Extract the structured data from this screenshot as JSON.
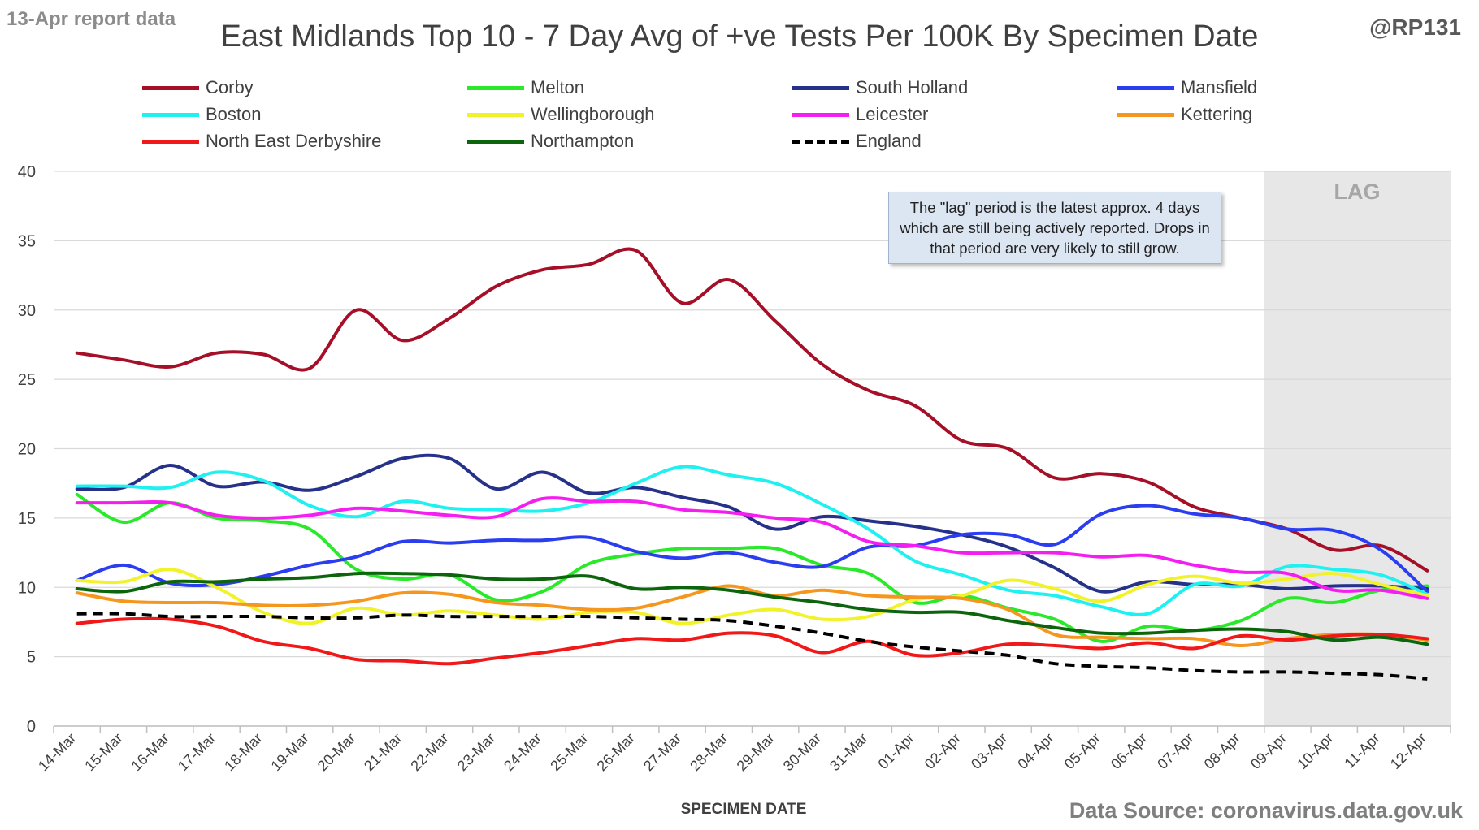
{
  "header": {
    "report_label": "13-Apr report data",
    "title": "East Midlands Top 10 - 7 Day Avg of +ve Tests Per 100K By Specimen Date",
    "handle": "@RP131"
  },
  "annotation": {
    "lag_label": "LAG",
    "note": "The \"lag\" period is the latest approx. 4 days which are still being actively reported. Drops in that period are very likely to still grow."
  },
  "footer": {
    "source": "Data Source: coronavirus.data.gov.uk"
  },
  "colors": {
    "grid": "#d9d9d9",
    "lag_shade": "#e7e7e7",
    "text": "#404040"
  },
  "chart_data": {
    "type": "line",
    "title": "East Midlands Top 10 - 7 Day Avg of +ve Tests Per 100K By Specimen Date",
    "xlabel": "SPECIMEN DATE",
    "ylabel": "",
    "ylim": [
      0,
      40
    ],
    "yticks": [
      0,
      5,
      10,
      15,
      20,
      25,
      30,
      35,
      40
    ],
    "grid": "horizontal",
    "legend_position": "top",
    "lag_start": "09-Apr",
    "categories": [
      "14-Mar",
      "15-Mar",
      "16-Mar",
      "17-Mar",
      "18-Mar",
      "19-Mar",
      "20-Mar",
      "21-Mar",
      "22-Mar",
      "23-Mar",
      "24-Mar",
      "25-Mar",
      "26-Mar",
      "27-Mar",
      "28-Mar",
      "29-Mar",
      "30-Mar",
      "31-Mar",
      "01-Apr",
      "02-Apr",
      "03-Apr",
      "04-Apr",
      "05-Apr",
      "06-Apr",
      "07-Apr",
      "08-Apr",
      "09-Apr",
      "10-Apr",
      "11-Apr",
      "12-Apr"
    ],
    "series": [
      {
        "name": "Corby",
        "color": "#a50f27",
        "dashed": false,
        "values": [
          26.9,
          26.4,
          25.9,
          26.9,
          26.8,
          25.8,
          30.0,
          27.8,
          29.4,
          31.7,
          32.9,
          33.3,
          34.3,
          30.5,
          32.2,
          29.2,
          26.1,
          24.2,
          23.1,
          20.6,
          20.0,
          17.9,
          18.2,
          17.6,
          15.8,
          15.0,
          14.2,
          12.7,
          13.0,
          11.2
        ]
      },
      {
        "name": "Melton",
        "color": "#2ae82a",
        "dashed": false,
        "values": [
          16.7,
          14.7,
          16.1,
          15.0,
          14.8,
          14.2,
          11.3,
          10.6,
          10.9,
          9.1,
          9.7,
          11.7,
          12.4,
          12.8,
          12.8,
          12.8,
          11.6,
          11.0,
          8.9,
          9.4,
          8.5,
          7.7,
          6.1,
          7.2,
          6.9,
          7.6,
          9.2,
          8.9,
          9.8,
          10.1
        ]
      },
      {
        "name": "South Holland",
        "color": "#26328a",
        "dashed": false,
        "values": [
          17.1,
          17.2,
          18.8,
          17.3,
          17.6,
          17.0,
          18.0,
          19.3,
          19.3,
          17.1,
          18.3,
          16.8,
          17.2,
          16.5,
          15.8,
          14.2,
          15.1,
          14.8,
          14.4,
          13.8,
          12.9,
          11.4,
          9.7,
          10.4,
          10.2,
          10.2,
          9.9,
          10.1,
          10.1,
          9.9
        ]
      },
      {
        "name": "Mansfield",
        "color": "#2a3ef0",
        "dashed": false,
        "values": [
          10.5,
          11.6,
          10.3,
          10.2,
          10.8,
          11.6,
          12.2,
          13.3,
          13.2,
          13.4,
          13.4,
          13.6,
          12.6,
          12.1,
          12.5,
          11.8,
          11.5,
          12.9,
          13.0,
          13.8,
          13.8,
          13.1,
          15.3,
          15.9,
          15.3,
          15.0,
          14.2,
          14.1,
          12.7,
          9.7
        ]
      },
      {
        "name": "Boston",
        "color": "#1ff0f0",
        "dashed": false,
        "values": [
          17.3,
          17.3,
          17.2,
          18.3,
          17.7,
          15.9,
          15.1,
          16.2,
          15.7,
          15.6,
          15.5,
          16.1,
          17.5,
          18.7,
          18.1,
          17.5,
          16.0,
          14.2,
          11.9,
          10.9,
          9.8,
          9.4,
          8.6,
          8.1,
          10.2,
          10.1,
          11.5,
          11.3,
          10.9,
          9.5
        ]
      },
      {
        "name": "Wellingborough",
        "color": "#f2f22a",
        "dashed": false,
        "values": [
          10.5,
          10.4,
          11.3,
          10.0,
          8.2,
          7.4,
          8.5,
          8.0,
          8.3,
          8.0,
          7.7,
          8.2,
          8.2,
          7.4,
          8.0,
          8.4,
          7.7,
          7.9,
          9.1,
          9.4,
          10.5,
          9.9,
          9.0,
          10.2,
          10.8,
          10.3,
          10.6,
          11.0,
          10.2,
          9.4
        ]
      },
      {
        "name": "Leicester",
        "color": "#f51ef0",
        "dashed": false,
        "values": [
          16.1,
          16.1,
          16.1,
          15.2,
          15.0,
          15.2,
          15.7,
          15.5,
          15.2,
          15.1,
          16.4,
          16.2,
          16.2,
          15.6,
          15.4,
          15.0,
          14.7,
          13.3,
          13.0,
          12.5,
          12.5,
          12.5,
          12.2,
          12.3,
          11.6,
          11.1,
          11.0,
          9.8,
          9.8,
          9.2
        ]
      },
      {
        "name": "Kettering",
        "color": "#f5961e",
        "dashed": false,
        "values": [
          9.6,
          9.0,
          8.9,
          8.9,
          8.7,
          8.7,
          9.0,
          9.6,
          9.5,
          8.9,
          8.7,
          8.4,
          8.5,
          9.3,
          10.1,
          9.4,
          9.8,
          9.4,
          9.3,
          9.2,
          8.4,
          6.6,
          6.4,
          6.3,
          6.3,
          5.8,
          6.3,
          6.6,
          6.6,
          6.2
        ]
      },
      {
        "name": "North East Derbyshire",
        "color": "#f01818",
        "dashed": false,
        "values": [
          7.4,
          7.7,
          7.7,
          7.2,
          6.1,
          5.6,
          4.8,
          4.7,
          4.5,
          4.9,
          5.3,
          5.8,
          6.3,
          6.2,
          6.7,
          6.5,
          5.3,
          6.1,
          5.1,
          5.3,
          5.9,
          5.8,
          5.6,
          6.0,
          5.6,
          6.5,
          6.2,
          6.5,
          6.6,
          6.3
        ]
      },
      {
        "name": "Northampton",
        "color": "#0c640c",
        "dashed": false,
        "values": [
          9.9,
          9.7,
          10.4,
          10.4,
          10.6,
          10.7,
          11.0,
          11.0,
          10.9,
          10.6,
          10.6,
          10.8,
          9.9,
          10.0,
          9.8,
          9.3,
          8.9,
          8.4,
          8.2,
          8.2,
          7.6,
          7.1,
          6.7,
          6.7,
          6.9,
          7.0,
          6.8,
          6.2,
          6.4,
          5.9
        ]
      },
      {
        "name": "England",
        "color": "#000000",
        "dashed": true,
        "values": [
          8.1,
          8.1,
          7.9,
          7.9,
          7.9,
          7.8,
          7.8,
          8.0,
          7.9,
          7.9,
          7.9,
          7.9,
          7.8,
          7.7,
          7.6,
          7.2,
          6.7,
          6.1,
          5.7,
          5.4,
          5.1,
          4.5,
          4.3,
          4.2,
          4.0,
          3.9,
          3.9,
          3.8,
          3.7,
          3.4
        ]
      }
    ]
  }
}
